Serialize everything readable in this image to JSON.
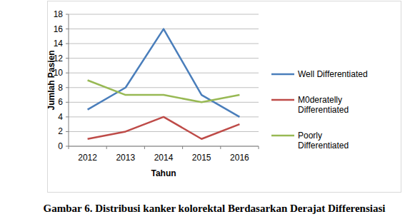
{
  "chart_data": {
    "type": "line",
    "title": "Gambar 6. Distribusi kanker kolorektal Berdasarkan Derajat Differensiasi",
    "x_label": "Tahun",
    "y_label": "Jumlah Pasien",
    "categories": [
      "2012",
      "2013",
      "2014",
      "2015",
      "2016"
    ],
    "series": [
      {
        "name": "Well Differentiated",
        "color": "#4a7ebb",
        "values": [
          5,
          8,
          16,
          7,
          4
        ]
      },
      {
        "name": "M0deratelly Differentiated",
        "color": "#be4b48",
        "values": [
          1,
          2,
          4,
          1,
          3
        ]
      },
      {
        "name": "Poorly Differentiated",
        "color": "#98b954",
        "values": [
          9,
          7,
          7,
          6,
          7
        ]
      }
    ],
    "ylim": [
      0,
      18
    ],
    "yticks": [
      0,
      2,
      4,
      6,
      8,
      10,
      12,
      14,
      16,
      18
    ],
    "grid": true,
    "legend": "right"
  }
}
